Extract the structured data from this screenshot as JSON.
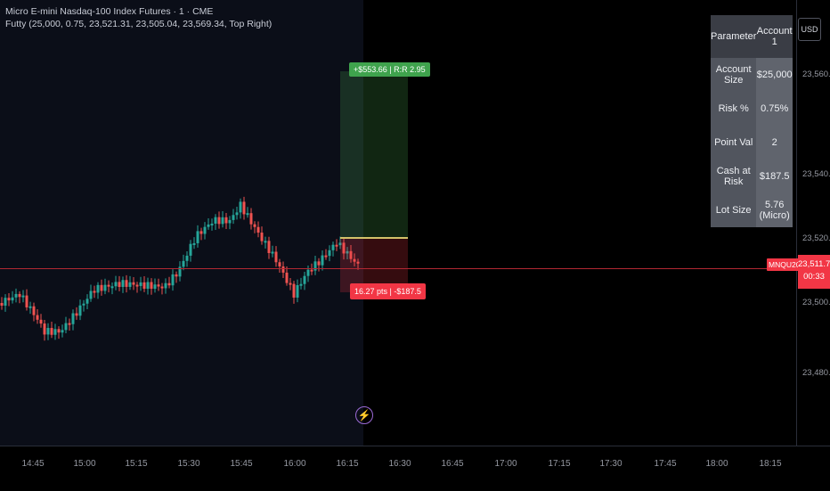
{
  "header": {
    "symbol_title": "Micro E-mini Nasdaq-100 Index Futures · 1 · CME",
    "indicator": "Futty (25,000, 0.75, 23,521.31, 23,505.04, 23,569.34, Top Right)"
  },
  "position": {
    "tp_label": "+$553.66 | R:R 2.95",
    "sl_label": "16.27 pts | -$187.5"
  },
  "table": {
    "header": [
      "Parameter",
      "Account 1"
    ],
    "rows": [
      [
        "Account Size",
        "$25,000"
      ],
      [
        "Risk %",
        "0.75%"
      ],
      [
        "Point Val",
        "2"
      ],
      [
        "Cash at Risk",
        "$187.5"
      ],
      [
        "Lot Size",
        "5.76 (Micro)"
      ]
    ]
  },
  "price_axis": {
    "currency": "USD",
    "labels": [
      "23,560.00",
      "23,540.00",
      "23,520.00",
      "23,500.00",
      "23,480.00"
    ],
    "symbol_tag": "MNQU2025",
    "current_price": "23,511.75",
    "countdown": "00:33"
  },
  "time_axis": [
    "14:45",
    "15:00",
    "15:15",
    "15:30",
    "15:45",
    "16:00",
    "16:15",
    "16:30",
    "16:45",
    "17:00",
    "17:15",
    "17:30",
    "17:45",
    "18:00",
    "18:15"
  ],
  "icons": {
    "alert": "lightning-icon"
  },
  "colors": {
    "up": "#26a69a",
    "down": "#ef5350",
    "accent": "#f23645"
  }
}
